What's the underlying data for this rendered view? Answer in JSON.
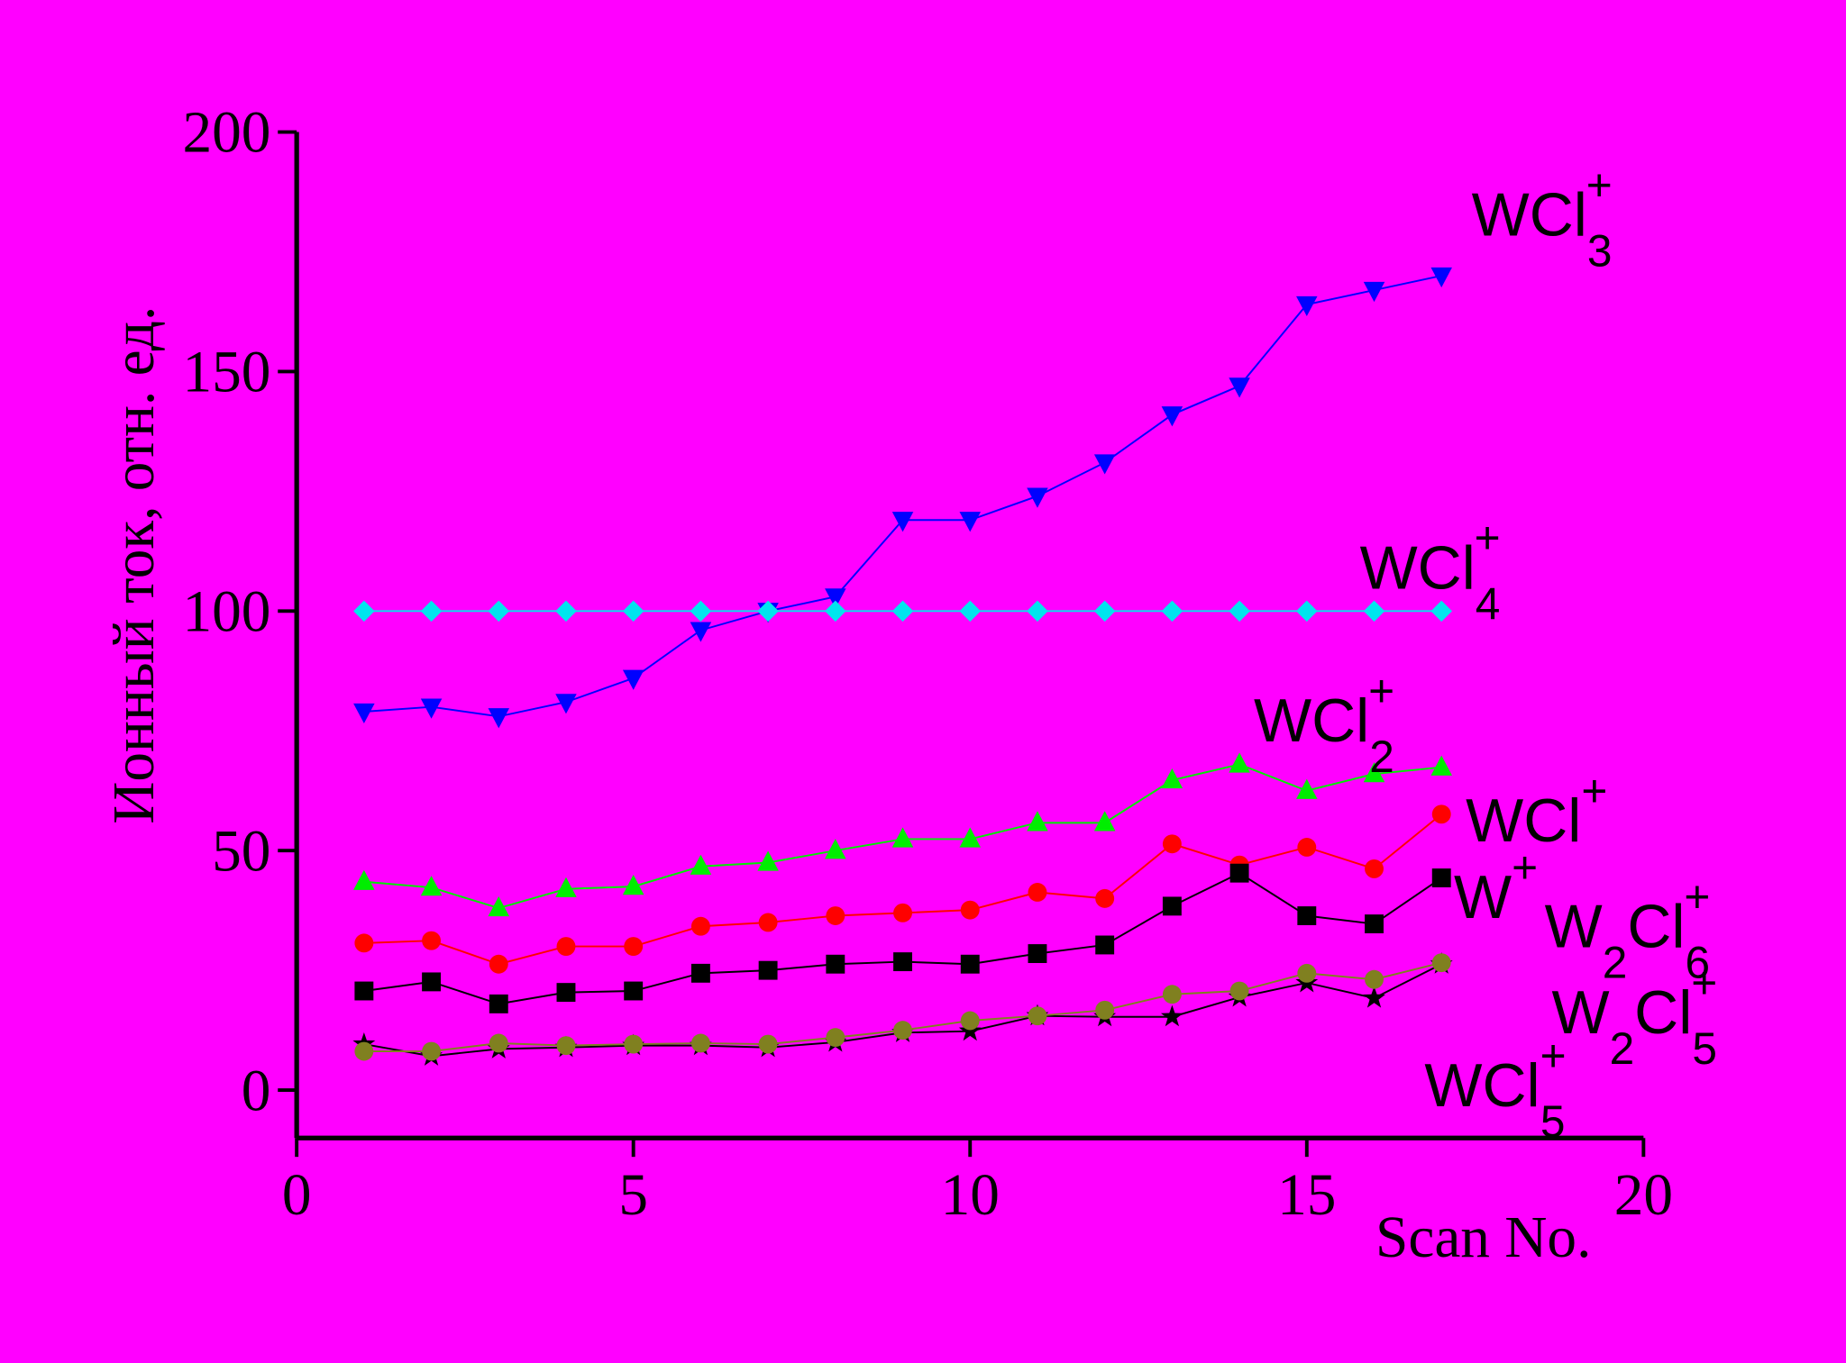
{
  "chart_data": {
    "type": "line",
    "xlabel": "Scan No.",
    "ylabel": "Ионный ток, отн. ед.",
    "x": [
      1,
      2,
      3,
      4,
      5,
      6,
      7,
      8,
      9,
      10,
      11,
      12,
      13,
      14,
      15,
      16,
      17
    ],
    "xlim": [
      0,
      20
    ],
    "xticks": [
      0,
      5,
      10,
      15,
      20
    ],
    "ylim": [
      -10,
      200
    ],
    "yticks": [
      0,
      50,
      100,
      150,
      200
    ],
    "background": "#ff00ff",
    "series": [
      {
        "color": "#0000ff",
        "marker": "triangle-down",
        "values": [
          79,
          80,
          78,
          81,
          86,
          96,
          100,
          103,
          119,
          119,
          124,
          131,
          141,
          147,
          164,
          167,
          170
        ]
      },
      {
        "color": "#00e5ee",
        "marker": "diamond",
        "values": [
          100,
          100,
          100,
          100,
          100,
          100,
          100,
          100,
          100,
          100,
          100,
          100,
          100,
          100,
          100,
          100,
          100
        ]
      },
      {
        "color": "#00ee00",
        "marker": "triangle-up",
        "values": [
          43.5,
          42.3,
          38,
          42,
          42.5,
          46.7,
          47.5,
          50,
          52.4,
          52.4,
          55.8,
          55.8,
          64.7,
          68,
          62.5,
          66,
          67.4
        ]
      },
      {
        "color": "#ff0000",
        "marker": "circle",
        "values": [
          30.7,
          31.2,
          26.3,
          30,
          30,
          34.2,
          35,
          36.4,
          37,
          37.6,
          41.3,
          40,
          51.4,
          47,
          50.7,
          46.2,
          57.6
        ]
      },
      {
        "color": "#000000",
        "marker": "square",
        "values": [
          20.7,
          22.6,
          18,
          20.4,
          20.7,
          24.4,
          25,
          26.3,
          26.8,
          26.3,
          28.5,
          30.3,
          38.4,
          45.3,
          36.4,
          34.7,
          44.3
        ]
      },
      {
        "color": "#000000",
        "marker": "star",
        "values": [
          9.6,
          7.1,
          8.6,
          8.9,
          9.3,
          9.3,
          8.9,
          10,
          12,
          12.3,
          15.5,
          15.3,
          15.3,
          19.4,
          22.4,
          19.2,
          26.3
        ]
      },
      {
        "color": "#808020",
        "marker": "circle",
        "values": [
          8.1,
          8.1,
          9.8,
          9.3,
          9.6,
          9.8,
          9.6,
          11,
          12.5,
          14.5,
          15.5,
          16.7,
          20,
          20.7,
          24.4,
          23.1,
          26.6
        ]
      }
    ],
    "annotations": [
      {
        "parts": [
          {
            "text": "WCl",
            "shift": "base"
          },
          {
            "text": "3",
            "shift": "sub"
          },
          {
            "text": "+",
            "shift": "sup"
          }
        ]
      },
      {
        "parts": [
          {
            "text": "WCl",
            "shift": "base"
          },
          {
            "text": "4",
            "shift": "sub"
          },
          {
            "text": "+",
            "shift": "sup"
          }
        ]
      },
      {
        "parts": [
          {
            "text": "WCl",
            "shift": "base"
          },
          {
            "text": "2",
            "shift": "sub"
          },
          {
            "text": "+",
            "shift": "sup"
          }
        ]
      },
      {
        "parts": [
          {
            "text": "WCl",
            "shift": "base"
          },
          {
            "text": "+",
            "shift": "sup"
          }
        ]
      },
      {
        "parts": [
          {
            "text": "W",
            "shift": "base"
          },
          {
            "text": "+",
            "shift": "sup"
          }
        ]
      },
      {
        "parts": [
          {
            "text": "W",
            "shift": "base"
          },
          {
            "text": "2",
            "shift": "sub"
          },
          {
            "text": "Cl",
            "shift": "base"
          },
          {
            "text": "6",
            "shift": "sub"
          },
          {
            "text": "+",
            "shift": "sup"
          }
        ]
      },
      {
        "parts": [
          {
            "text": "W",
            "shift": "base"
          },
          {
            "text": "2",
            "shift": "sub"
          },
          {
            "text": "Cl",
            "shift": "base"
          },
          {
            "text": "5",
            "shift": "sub"
          },
          {
            "text": "+",
            "shift": "sup"
          }
        ]
      },
      {
        "parts": [
          {
            "text": "WCl",
            "shift": "base"
          },
          {
            "text": "+",
            "shift": "sup"
          },
          {
            "text": "5",
            "shift": "sub"
          }
        ]
      }
    ]
  }
}
